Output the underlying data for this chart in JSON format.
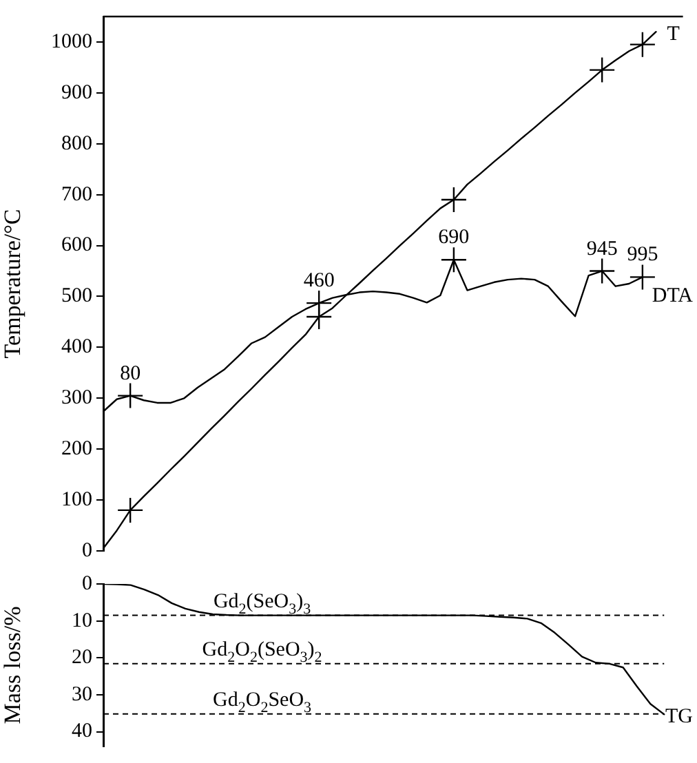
{
  "chart_data": [
    {
      "type": "line",
      "ylabel": "Temperature/°C",
      "categories": [
        null,
        null,
        null,
        null,
        null,
        null,
        null,
        null,
        null,
        null,
        null,
        null,
        null,
        null,
        null,
        null,
        null,
        null,
        null,
        null,
        null,
        null,
        null,
        null,
        null,
        null,
        null,
        null,
        null,
        null,
        null,
        null,
        null,
        null,
        null,
        null,
        null,
        null,
        null,
        null,
        null,
        null,
        null,
        null
      ],
      "series": [
        {
          "name": "T",
          "color": "#000000",
          "values": [
            5,
            40,
            80,
            107,
            133,
            160,
            186,
            213,
            240,
            266,
            293,
            319,
            346,
            372,
            399,
            425,
            460,
            477,
            502,
            526,
            551,
            575,
            600,
            624,
            649,
            673,
            690,
            720,
            742,
            765,
            787,
            810,
            832,
            855,
            877,
            900,
            922,
            945,
            964,
            982,
            995,
            1020,
            null,
            null
          ]
        },
        {
          "name": "DTA",
          "color": "#000000",
          "values": [
            274,
            298,
            305,
            296,
            291,
            291,
            300,
            321,
            339,
            357,
            382,
            408,
            420,
            440,
            460,
            475,
            487,
            497,
            503,
            508,
            510,
            508,
            505,
            497,
            488,
            502,
            572,
            512,
            520,
            528,
            533,
            535,
            533,
            520,
            490,
            461,
            541,
            550,
            520,
            525,
            538,
            null,
            null,
            null
          ]
        },
        {
          "type": "scatter",
          "color": "#000000",
          "marker": "cross",
          "values": [
            null,
            null,
            80,
            null,
            null,
            null,
            null,
            null,
            null,
            null,
            null,
            null,
            null,
            null,
            null,
            null,
            460,
            null,
            null,
            null,
            null,
            null,
            null,
            null,
            null,
            null,
            690,
            null,
            null,
            null,
            null,
            null,
            null,
            null,
            null,
            null,
            null,
            945,
            null,
            null,
            995,
            null,
            null,
            null
          ]
        },
        {
          "type": "scatter",
          "color": "#000000",
          "marker": "cross",
          "values": [
            null,
            null,
            305,
            null,
            null,
            null,
            null,
            null,
            null,
            null,
            null,
            null,
            null,
            null,
            null,
            null,
            487,
            null,
            null,
            null,
            null,
            null,
            null,
            null,
            null,
            null,
            572,
            null,
            null,
            null,
            null,
            null,
            null,
            null,
            null,
            null,
            null,
            550,
            null,
            null,
            538,
            null,
            null,
            null
          ]
        }
      ],
      "annotations": [
        "80",
        "460",
        "690",
        "945",
        "995"
      ],
      "ylim": [
        0,
        1050
      ],
      "yticks": [
        0,
        100,
        200,
        300,
        400,
        500,
        600,
        700,
        800,
        900,
        1000
      ],
      "tick_labels": "y",
      "grid": false,
      "legend": false,
      "marker": "none",
      "line_style": "solid"
    },
    {
      "type": "line",
      "ylabel": "Mass loss/%",
      "categories": [
        null,
        null,
        null,
        null,
        null,
        null,
        null,
        null,
        null,
        null,
        null,
        null,
        null,
        null,
        null,
        null,
        null,
        null,
        null,
        null,
        null,
        null,
        null,
        null,
        null,
        null,
        null,
        null,
        null,
        null,
        null,
        null,
        null,
        null,
        null,
        null,
        null,
        null,
        null,
        null,
        null,
        null,
        null,
        null
      ],
      "series": [
        {
          "name": "TG",
          "color": "#000000",
          "values": [
            0,
            0.1,
            0.3,
            1.5,
            3,
            5.2,
            6.7,
            7.6,
            8.2,
            8.4,
            8.5,
            8.5,
            8.5,
            8.5,
            8.5,
            8.5,
            8.5,
            8.5,
            8.5,
            8.5,
            8.5,
            8.5,
            8.5,
            8.5,
            8.5,
            8.5,
            8.5,
            8.5,
            8.7,
            8.9,
            9.1,
            9.4,
            10.6,
            13.2,
            16.4,
            19.7,
            21.3,
            21.6,
            22.6,
            27.7,
            32.5,
            35.3,
            null,
            null
          ]
        }
      ],
      "ylim": [
        44,
        0
      ],
      "yticks": [
        0,
        10,
        20,
        30,
        40
      ],
      "tick_labels": "y",
      "grid": false,
      "legend": false,
      "marker": "none",
      "line_style": "solid",
      "ref_lines": [
        {
          "axis": "y",
          "value": 8.5,
          "label": "Gd$_{2}$(SeO$_{3}$)$_{3}$",
          "color": "#000000",
          "line_style": "dashed"
        },
        {
          "axis": "y",
          "value": 21.6,
          "label": "Gd$_{2}$O$_{2}$(SeO$_{3}$)$_{2}$",
          "color": "#000000",
          "line_style": "dashed"
        },
        {
          "axis": "y",
          "value": 35.2,
          "label": "Gd$_{2}$O$_{2}$SeO$_{3}$",
          "color": "#000000",
          "line_style": "dashed"
        }
      ]
    }
  ]
}
